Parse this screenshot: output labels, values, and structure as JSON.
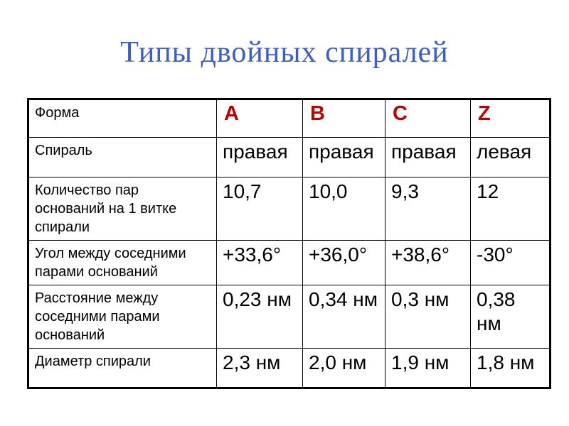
{
  "colors": {
    "title_blue": "#3B5ECC",
    "accent_red": "#C00000",
    "grid_black": "#000000"
  },
  "slide": {
    "title": "Типы двойных спиралей"
  },
  "table": {
    "header": {
      "label": "Форма",
      "columns": [
        "A",
        "B",
        "C",
        "Z"
      ]
    },
    "rows": [
      {
        "label": "Спираль",
        "values": [
          "правая",
          "правая",
          "правая",
          "левая"
        ]
      },
      {
        "label": "Количество пар\nоснований на 1 витке\nспирали",
        "values": [
          "10,7",
          "10,0",
          "9,3",
          "12"
        ]
      },
      {
        "label": "Угол между соседними\nпарами оснований",
        "values": [
          "+33,6°",
          "+36,0°",
          "+38,6°",
          "-30°"
        ]
      },
      {
        "label": "Расстояние между\nсоседними парами\nоснований",
        "values": [
          "0,23 нм",
          "0,34 нм",
          "0,3 нм",
          "0,38 нм"
        ]
      },
      {
        "label": "Диаметр спирали",
        "values": [
          "2,3 нм",
          "2,0 нм",
          "1,9 нм",
          "1,8 нм"
        ]
      }
    ]
  }
}
